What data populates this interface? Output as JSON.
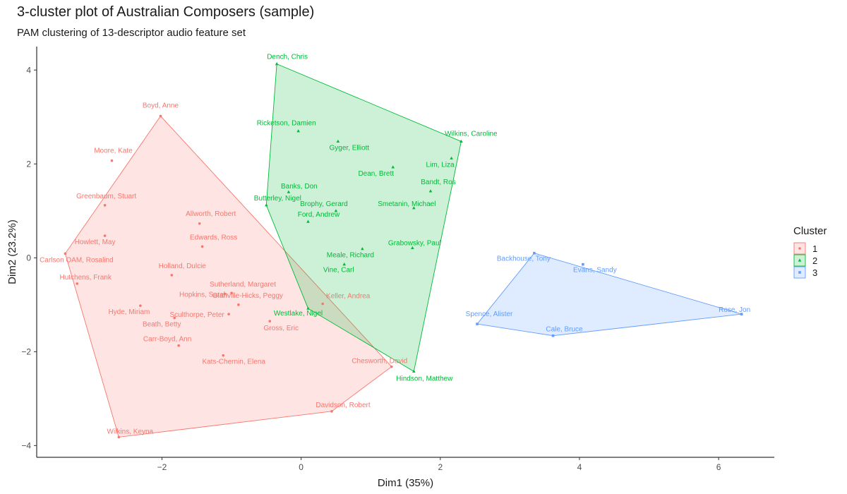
{
  "title": "3-cluster plot of Australian Composers (sample)",
  "subtitle": "PAM clustering of 13-descriptor audio feature set",
  "chart_data": {
    "type": "scatter",
    "title": "3-cluster plot of Australian Composers (sample)",
    "subtitle": "PAM clustering of 13-descriptor audio feature set",
    "xlabel": "Dim1 (35%)",
    "ylabel": "Dim2 (23.2%)",
    "xlim": [
      -3.8,
      6.8
    ],
    "ylim": [
      -4.25,
      4.5
    ],
    "xticks": [
      -2,
      0,
      2,
      4,
      6
    ],
    "yticks": [
      -4,
      -2,
      0,
      2,
      4
    ],
    "grid": false,
    "legend": {
      "title": "Cluster",
      "position": "right"
    },
    "clusters": [
      {
        "name": "1",
        "color": "#F8766D",
        "fill": "#F8766D",
        "marker": "circle",
        "points": [
          {
            "label": "Boyd, Anne",
            "x": -2.02,
            "y": 3.02
          },
          {
            "label": "Moore, Kate",
            "x": -2.72,
            "y": 2.07
          },
          {
            "label": "Greenbaum, Stuart",
            "x": -2.82,
            "y": 1.12
          },
          {
            "label": "Allworth, Robert",
            "x": -1.46,
            "y": 0.73
          },
          {
            "label": "Howlett, May",
            "x": -2.82,
            "y": 0.47
          },
          {
            "label": "Edwards, Ross",
            "x": -1.42,
            "y": 0.24
          },
          {
            "label": "Carlson OAM, Rosalind",
            "x": -3.39,
            "y": 0.09
          },
          {
            "label": "Holland, Dulcie",
            "x": -1.86,
            "y": -0.37
          },
          {
            "label": "Hutchens, Frank",
            "x": -3.22,
            "y": -0.55
          },
          {
            "label": "Sutherland, Margaret",
            "x": -1.0,
            "y": -0.75
          },
          {
            "label": "Glanville-Hicks, Peggy",
            "x": -0.9,
            "y": -1.0
          },
          {
            "label": "Keller, Andrea",
            "x": 0.31,
            "y": -0.98
          },
          {
            "label": "Hopkins, Sarah",
            "x": -1.1,
            "y": -0.77
          },
          {
            "label": "Hyde, Miriam",
            "x": -2.31,
            "y": -1.02
          },
          {
            "label": "Sculthorpe, Peter",
            "x": -1.04,
            "y": -1.2
          },
          {
            "label": "Beath, Betty",
            "x": -1.82,
            "y": -1.28
          },
          {
            "label": "Gross, Eric",
            "x": -0.45,
            "y": -1.35
          },
          {
            "label": "Carr-Boyd, Ann",
            "x": -1.76,
            "y": -1.87
          },
          {
            "label": "Kats-Chernin, Elena",
            "x": -1.12,
            "y": -2.08
          },
          {
            "label": "Chesworth, David",
            "x": 1.3,
            "y": -2.32
          },
          {
            "label": "Davidson, Robert",
            "x": 0.44,
            "y": -3.27
          },
          {
            "label": "Wilkins, Keyna",
            "x": -2.62,
            "y": -3.82
          }
        ],
        "hull": [
          "Boyd, Anne",
          "Carlson OAM, Rosalind",
          "Wilkins, Keyna",
          "Davidson, Robert",
          "Chesworth, David"
        ]
      },
      {
        "name": "2",
        "color": "#00BA38",
        "fill": "#00BA38",
        "marker": "triangle",
        "points": [
          {
            "label": "Dench, Chris",
            "x": -0.35,
            "y": 4.13
          },
          {
            "label": "Ricketson, Damien",
            "x": -0.04,
            "y": 2.7
          },
          {
            "label": "Wilkins, Caroline",
            "x": 2.3,
            "y": 2.48
          },
          {
            "label": "Gyger, Elliott",
            "x": 0.53,
            "y": 2.48
          },
          {
            "label": "Lim, Liza",
            "x": 2.16,
            "y": 2.12
          },
          {
            "label": "Dean, Brett",
            "x": 1.32,
            "y": 1.93
          },
          {
            "label": "Bandt, Ros",
            "x": 1.86,
            "y": 1.42
          },
          {
            "label": "Banks, Don",
            "x": -0.18,
            "y": 1.4
          },
          {
            "label": "Butterley, Nigel",
            "x": -0.5,
            "y": 1.12
          },
          {
            "label": "Smetanin, Michael",
            "x": 1.62,
            "y": 1.06
          },
          {
            "label": "Brophy, Gerard",
            "x": 0.5,
            "y": 1.0
          },
          {
            "label": "Ford, Andrew",
            "x": 0.1,
            "y": 0.77
          },
          {
            "label": "Grabowsky, Paul",
            "x": 1.6,
            "y": 0.21
          },
          {
            "label": "Meale, Richard",
            "x": 0.88,
            "y": 0.19
          },
          {
            "label": "Vine, Carl",
            "x": 0.62,
            "y": -0.14
          },
          {
            "label": "Westlake, Nigel",
            "x": 0.1,
            "y": -1.08
          },
          {
            "label": "Hindson, Matthew",
            "x": 1.62,
            "y": -2.42
          }
        ],
        "hull": [
          "Dench, Chris",
          "Butterley, Nigel",
          "Westlake, Nigel",
          "Hindson, Matthew",
          "Wilkins, Caroline"
        ]
      },
      {
        "name": "3",
        "color": "#619CFF",
        "fill": "#619CFF",
        "marker": "square",
        "points": [
          {
            "label": "Backhouse, Tony",
            "x": 3.35,
            "y": 0.1
          },
          {
            "label": "Evans, Sandy",
            "x": 4.05,
            "y": -0.14
          },
          {
            "label": "Rose, Jon",
            "x": 6.33,
            "y": -1.2
          },
          {
            "label": "Spence, Alister",
            "x": 2.53,
            "y": -1.41
          },
          {
            "label": "Cale, Bruce",
            "x": 3.62,
            "y": -1.66
          }
        ],
        "hull": [
          "Backhouse, Tony",
          "Spence, Alister",
          "Cale, Bruce",
          "Rose, Jon"
        ]
      }
    ]
  }
}
